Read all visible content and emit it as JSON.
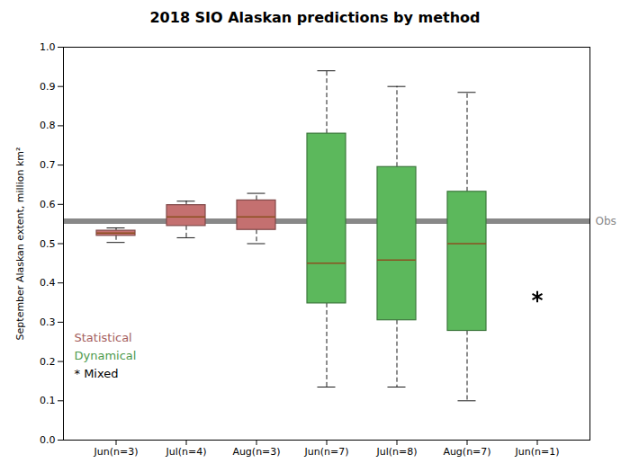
{
  "chart_data": {
    "type": "box",
    "title": "2018 SIO Alaskan predictions by method",
    "ylabel": "September Alaskan extent, million km²",
    "ylim": [
      0,
      1.0
    ],
    "yticks": [
      0,
      0.1,
      0.2,
      0.3,
      0.4,
      0.5,
      0.6,
      0.7,
      0.8,
      0.9,
      1
    ],
    "categories": [
      "Jun(n=3)",
      "Jul(n=4)",
      "Aug(n=3)",
      "Jun(n=7)",
      "Jul(n=8)",
      "Aug(n=7)",
      "Jun(n=1)"
    ],
    "series": [
      {
        "name": "Statistical",
        "type": "box",
        "color": "#c47070",
        "values": [
          {
            "q1": 0.52,
            "median": 0.527,
            "q3": 0.533,
            "whisker_low": 0.503,
            "whisker_high": 0.54
          },
          {
            "q1": 0.545,
            "median": 0.568,
            "q3": 0.598,
            "whisker_low": 0.515,
            "whisker_high": 0.608
          },
          {
            "q1": 0.535,
            "median": 0.568,
            "q3": 0.61,
            "whisker_low": 0.5,
            "whisker_high": 0.628
          },
          null,
          null,
          null,
          null
        ]
      },
      {
        "name": "Dynamical",
        "type": "box",
        "color": "#5cb85c",
        "values": [
          null,
          null,
          null,
          {
            "q1": 0.348,
            "median": 0.45,
            "q3": 0.78,
            "whisker_low": 0.135,
            "whisker_high": 0.94
          },
          {
            "q1": 0.305,
            "median": 0.458,
            "q3": 0.695,
            "whisker_low": 0.135,
            "whisker_high": 0.9
          },
          {
            "q1": 0.278,
            "median": 0.5,
            "q3": 0.632,
            "whisker_low": 0.1,
            "whisker_high": 0.885
          },
          null
        ]
      },
      {
        "name": "* Mixed",
        "type": "scatter",
        "marker": "asterisk",
        "color": "#000000",
        "values": [
          null,
          null,
          null,
          null,
          null,
          null,
          0.365
        ]
      }
    ],
    "hlines": [
      {
        "value": 0.557,
        "label": "Obs",
        "color": "#888888"
      }
    ],
    "legend": "lower left"
  }
}
